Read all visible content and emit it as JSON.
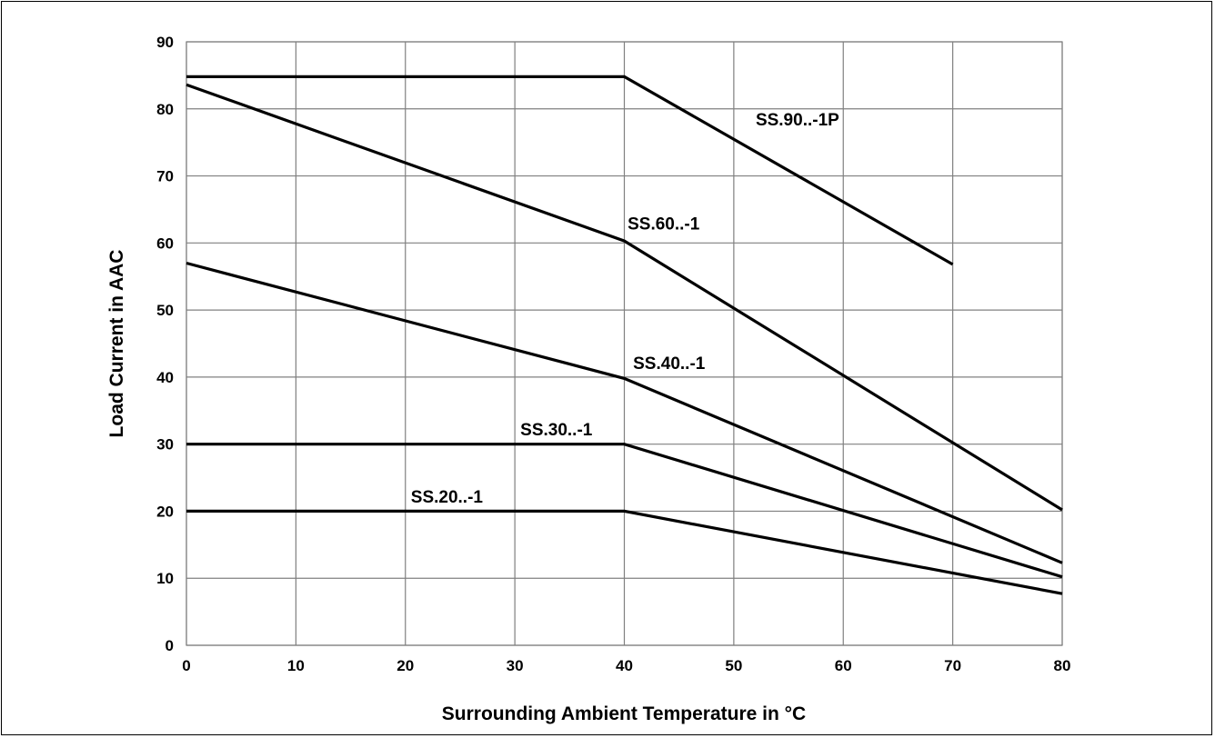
{
  "chart_data": {
    "type": "line",
    "xlabel": "Surrounding Ambient Temperature in °C",
    "ylabel": "Load Current in AAC",
    "xlim": [
      0,
      80
    ],
    "ylim": [
      0,
      90
    ],
    "xticks": [
      0,
      10,
      20,
      30,
      40,
      50,
      60,
      70,
      80
    ],
    "yticks": [
      0,
      10,
      20,
      30,
      40,
      50,
      60,
      70,
      80,
      90
    ],
    "grid": true,
    "colors": {
      "line": "#000000",
      "grid": "#808080",
      "background": "#ffffff"
    },
    "series": [
      {
        "name": "SS.90..-1P",
        "x": [
          0,
          40,
          70
        ],
        "y": [
          84.8,
          84.8,
          56.8
        ]
      },
      {
        "name": "SS.60..-1",
        "x": [
          0,
          40,
          80
        ],
        "y": [
          83.6,
          60.3,
          20.2
        ]
      },
      {
        "name": "SS.40..-1",
        "x": [
          0,
          40,
          80
        ],
        "y": [
          57.0,
          39.8,
          12.3
        ]
      },
      {
        "name": "SS.30..-1",
        "x": [
          0,
          40,
          80
        ],
        "y": [
          30.0,
          30.0,
          10.2
        ]
      },
      {
        "name": "SS.20..-1",
        "x": [
          0,
          40,
          80
        ],
        "y": [
          20.0,
          20.0,
          7.7
        ]
      }
    ]
  }
}
